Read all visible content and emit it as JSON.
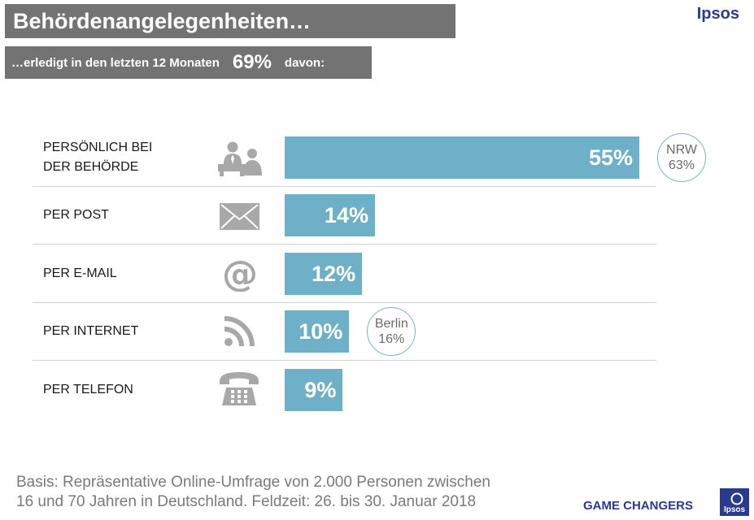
{
  "header": {
    "title": "Behördenangelegenheiten…",
    "subtitle_text": "…erledigt in den letzten 12 Monaten",
    "subtitle_value": "69%",
    "subtitle_suffix": "davon:",
    "brand": "Ipsos"
  },
  "chart_data": {
    "type": "bar",
    "orientation": "horizontal",
    "title": "Behördenangelegenheiten…",
    "categories": [
      "PERSÖNLICH BEI\nDER BEHÖRDE",
      "PER POST",
      "PER  E-MAIL",
      "PER INTERNET",
      "PER TELEFON"
    ],
    "values": [
      55,
      14,
      12,
      10,
      9
    ],
    "value_labels": [
      "55%",
      "14%",
      "12%",
      "10%",
      "9%"
    ],
    "value_unit": "%",
    "xlim": [
      0,
      55
    ],
    "bar_color": "#6fb0c9",
    "annotations": [
      {
        "category_index": 0,
        "line1": "NRW",
        "line2": "63%"
      },
      {
        "category_index": 3,
        "line1": "Berlin",
        "line2": "16%"
      }
    ]
  },
  "icons": [
    "office-people-icon",
    "envelope-icon",
    "at-sign-icon",
    "rss-feed-icon",
    "telephone-icon"
  ],
  "footer": {
    "basis_line1": "Basis: Repräsentative Online-Umfrage von 2.000 Personen zwischen",
    "basis_line2": "16 und 70 Jahren in Deutschland. Feldzeit: 26. bis 30. Januar 2018",
    "tagline": "GAME CHANGERS",
    "logo_text": "Ipsos"
  },
  "colors": {
    "header_bg": "#737373",
    "brand": "#2a3a8f",
    "bar": "#6fb0c9",
    "separator": "#d4d4d4"
  }
}
